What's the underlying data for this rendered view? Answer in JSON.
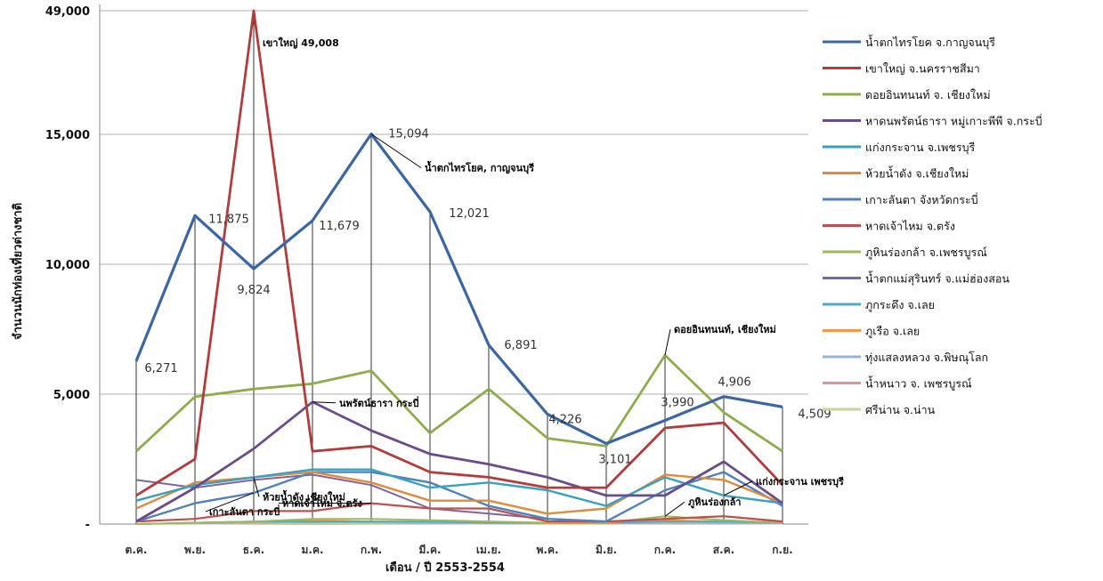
{
  "chart_data": {
    "type": "line",
    "xlabel": "เดือน / ปี 2553-2554",
    "ylabel": "จำนวนนักท่องเที่ยวต่างชาติ",
    "categories": [
      "ต.ค.",
      "พ.ย.",
      "ธ.ค.",
      "ม.ค.",
      "ก.พ.",
      "มี.ค.",
      "เม.ย.",
      "พ.ค.",
      "มิ.ย.",
      "ก.ค.",
      "ส.ค.",
      "ก.ย."
    ],
    "y_ticks": [
      "-",
      "5,000",
      "10,000",
      "15,000",
      "49,000"
    ],
    "y_tick_values": [
      0,
      5000,
      10000,
      15000,
      49000
    ],
    "y_axis_note": "broken scale: top tick 49,000 drawn at 20,000 position",
    "grid": true,
    "legend_position": "right",
    "series": [
      {
        "name": "น้ำตกไทรโยค จ.กาญจนบุรี",
        "color": "#3a66a6",
        "width": 3.2,
        "values": [
          6271,
          11875,
          9824,
          11679,
          15094,
          12021,
          6891,
          4226,
          3101,
          3990,
          4906,
          4509
        ]
      },
      {
        "name": "เขาใหญ่ จ.นครราชสีมา",
        "color": "#b53a3a",
        "width": 2.8,
        "values": [
          1100,
          2500,
          49008,
          2800,
          3000,
          2000,
          1800,
          1400,
          1400,
          3700,
          3900,
          1500
        ]
      },
      {
        "name": "ดอยอินทนนท์ จ. เชียงใหม่",
        "color": "#8cad4a",
        "width": 2.8,
        "values": [
          2800,
          4900,
          5200,
          5400,
          5900,
          3500,
          5200,
          3300,
          3000,
          6500,
          4300,
          2800
        ]
      },
      {
        "name": "หาดนพรัตน์ธารา หมู่เกาะพีพี จ.กระบี่",
        "color": "#6a4b8c",
        "width": 2.8,
        "values": [
          100,
          1400,
          2900,
          4700,
          3600,
          2700,
          2300,
          1800,
          1100,
          1100,
          2400,
          800
        ]
      },
      {
        "name": "แก่งกระจาน จ.เพชรบุรี",
        "color": "#38a0c0",
        "width": 2.4,
        "values": [
          900,
          1500,
          1800,
          2100,
          2100,
          1400,
          1600,
          1300,
          700,
          1800,
          1100,
          800
        ]
      },
      {
        "name": "ห้วยน้ำดัง จ.เชียงใหม่",
        "color": "#e08a3a",
        "width": 2.4,
        "values": [
          600,
          1600,
          1800,
          2000,
          1600,
          900,
          900,
          400,
          600,
          1900,
          1700,
          800
        ]
      },
      {
        "name": "เกาะลันตา จังหวัดกระบี่",
        "color": "#4f81bd",
        "width": 2.4,
        "values": [
          100,
          800,
          1200,
          2000,
          2000,
          1600,
          700,
          200,
          100,
          1300,
          2000,
          700
        ]
      },
      {
        "name": "หาดเจ้าไหม จ.ตรัง",
        "color": "#c0504d",
        "width": 2.2,
        "values": [
          100,
          200,
          500,
          500,
          800,
          600,
          600,
          100,
          100,
          200,
          300,
          100
        ]
      },
      {
        "name": "ภูหินร่องกล้า จ.เพชรบูรณ์",
        "color": "#9bbb59",
        "width": 2.0,
        "values": [
          0,
          50,
          100,
          200,
          200,
          150,
          100,
          50,
          50,
          300,
          150,
          50
        ]
      },
      {
        "name": "น้ำตกแม่สุรินทร์ จ.แม่ฮ่องสอน",
        "color": "#8064a2",
        "width": 2.0,
        "values": [
          1700,
          1400,
          1700,
          1900,
          1500,
          600,
          400,
          200,
          100,
          200,
          300,
          100
        ]
      },
      {
        "name": "ภูกระดึง จ.เลย",
        "color": "#4bacc6",
        "width": 1.8,
        "values": [
          0,
          50,
          100,
          100,
          100,
          100,
          50,
          50,
          50,
          100,
          100,
          50
        ]
      },
      {
        "name": "ภูเรือ จ.เลย",
        "color": "#f79646",
        "width": 1.8,
        "values": [
          0,
          50,
          100,
          150,
          100,
          80,
          50,
          30,
          20,
          150,
          100,
          50
        ]
      },
      {
        "name": "ทุ่งแสลงหลวง จ.พิษณุโลก",
        "color": "#95b3d7",
        "width": 1.6,
        "values": [
          0,
          30,
          50,
          80,
          60,
          40,
          30,
          20,
          20,
          60,
          40,
          30
        ]
      },
      {
        "name": "น้ำหนาว จ. เพชรบูรณ์",
        "color": "#d99694",
        "width": 1.6,
        "values": [
          0,
          20,
          40,
          60,
          50,
          30,
          20,
          10,
          10,
          40,
          30,
          20
        ]
      },
      {
        "name": "ศรีน่าน จ.น่าน",
        "color": "#c3d69b",
        "width": 1.6,
        "values": [
          0,
          10,
          20,
          30,
          20,
          20,
          10,
          10,
          10,
          20,
          20,
          10
        ]
      }
    ],
    "data_labels": [
      {
        "series": 0,
        "index": 0,
        "text": "6,271"
      },
      {
        "series": 0,
        "index": 1,
        "text": "11,875"
      },
      {
        "series": 0,
        "index": 2,
        "text": "9,824"
      },
      {
        "series": 0,
        "index": 3,
        "text": "11,679"
      },
      {
        "series": 0,
        "index": 4,
        "text": "15,094"
      },
      {
        "series": 0,
        "index": 5,
        "text": "12,021"
      },
      {
        "series": 0,
        "index": 6,
        "text": "6,891"
      },
      {
        "series": 0,
        "index": 7,
        "text": "4,226"
      },
      {
        "series": 0,
        "index": 8,
        "text": "3,101"
      },
      {
        "series": 0,
        "index": 9,
        "text": "3,990"
      },
      {
        "series": 0,
        "index": 10,
        "text": "4,906"
      },
      {
        "series": 0,
        "index": 11,
        "text": "4,509"
      }
    ],
    "annotations": [
      {
        "text": "เขาใหญ่ 49,008",
        "series": 1,
        "index": 2
      },
      {
        "text": "น้ำตกไทรโยค, กาญจนบุรี",
        "series": 0,
        "index": 4
      },
      {
        "text": "ดอยอินทนนท์, เชียงใหม่",
        "series": 2,
        "index": 9
      },
      {
        "text": "นพรัตน์ธารา กระบี่",
        "series": 3,
        "index": 3
      },
      {
        "text": "ห้วยน้ำดัง เชียงใหม่",
        "series": 5,
        "index": 2
      },
      {
        "text": "เกาะลันตา กระบี่",
        "series": 6,
        "index": 2
      },
      {
        "text": "หาดเจ้าไหม จ.ตรัง",
        "series": 7,
        "index": 4
      },
      {
        "text": "ภูหินร่องกล้า",
        "series": 8,
        "index": 9
      },
      {
        "text": "แก่งกระจาน เพชรบุรี",
        "series": 4,
        "index": 10
      }
    ]
  }
}
